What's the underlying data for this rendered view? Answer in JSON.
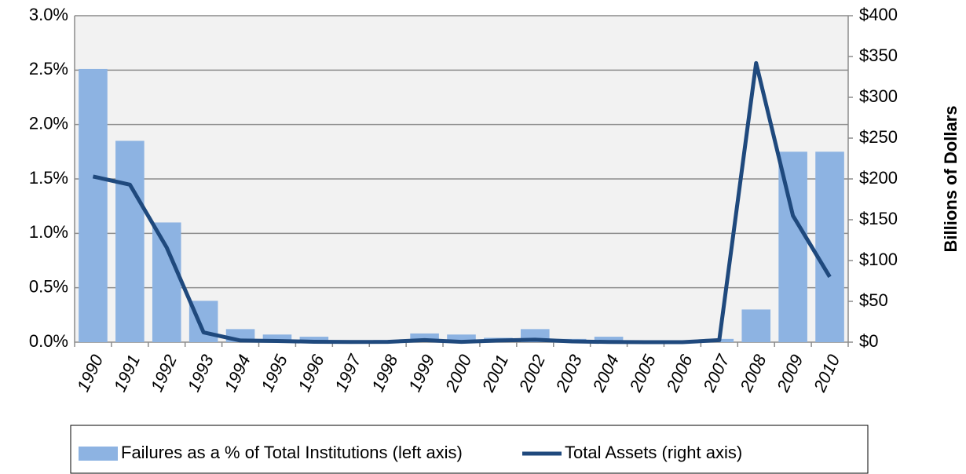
{
  "chart_data": {
    "type": "bar-line",
    "y2label": "Billions of Dollars",
    "categories": [
      "1990",
      "1991",
      "1992",
      "1993",
      "1994",
      "1995",
      "1996",
      "1997",
      "1998",
      "1999",
      "2000",
      "2001",
      "2002",
      "2003",
      "2004",
      "2005",
      "2006",
      "2007",
      "2008",
      "2009",
      "2010"
    ],
    "series": [
      {
        "name": "Failures as a % of Total Institutions (left axis)",
        "type": "bar",
        "color": "#8db3e2",
        "values": [
          2.51,
          1.85,
          1.1,
          0.38,
          0.12,
          0.07,
          0.05,
          0.01,
          0.02,
          0.08,
          0.07,
          0.04,
          0.12,
          0.03,
          0.05,
          0,
          0,
          0.03,
          0.3,
          1.75,
          1.75
        ]
      },
      {
        "name": "Total Assets (right axis)",
        "type": "line",
        "axis": "y2",
        "color": "#1f497d",
        "values": [
          203,
          193,
          116,
          12,
          2,
          1.5,
          0.5,
          0.3,
          0.4,
          2.5,
          0.4,
          2,
          3,
          1,
          0.2,
          0,
          0,
          2.5,
          342,
          155,
          80
        ]
      }
    ],
    "ylim": [
      0,
      3
    ],
    "yticks": [
      {
        "value": 0,
        "label": "0.0%"
      },
      {
        "value": 0.5,
        "label": "0.5%"
      },
      {
        "value": 1,
        "label": "1.0%"
      },
      {
        "value": 1.5,
        "label": "1.5%"
      },
      {
        "value": 2,
        "label": "2.0%"
      },
      {
        "value": 2.5,
        "label": "2.5%"
      },
      {
        "value": 3,
        "label": "3.0%"
      }
    ],
    "y2lim": [
      0,
      400
    ],
    "y2ticks": [
      {
        "value": 0,
        "label": "$0"
      },
      {
        "value": 50,
        "label": "$50"
      },
      {
        "value": 100,
        "label": "$100"
      },
      {
        "value": 150,
        "label": "$150"
      },
      {
        "value": 200,
        "label": "$200"
      },
      {
        "value": 250,
        "label": "$250"
      },
      {
        "value": 300,
        "label": "$300"
      },
      {
        "value": 350,
        "label": "$350"
      },
      {
        "value": 400,
        "label": "$400"
      }
    ],
    "grid": true,
    "legend": "bottom"
  }
}
